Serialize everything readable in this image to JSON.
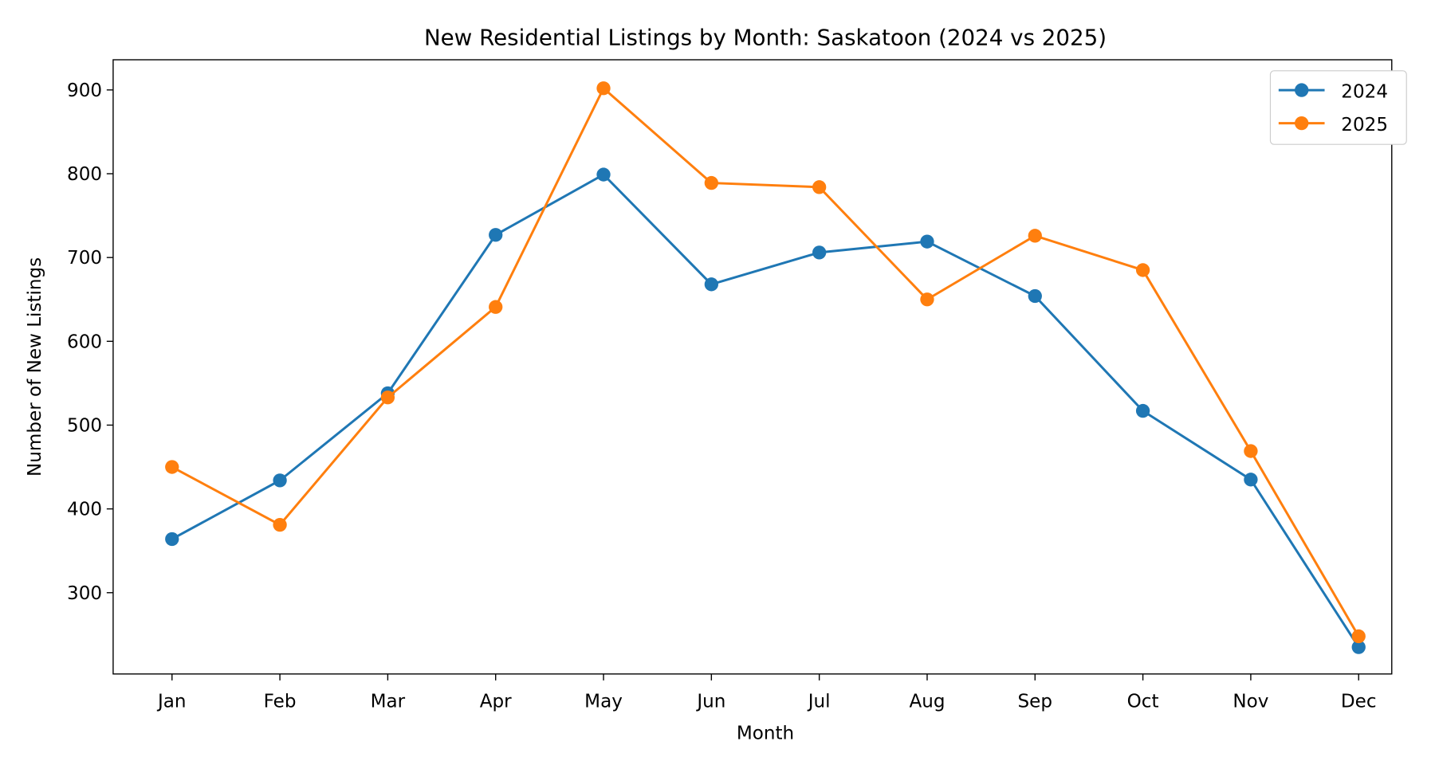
{
  "chart_data": {
    "type": "line",
    "title": "New Residential Listings by Month: Saskatoon (2024 vs 2025)",
    "xlabel": "Month",
    "ylabel": "Number of New Listings",
    "categories": [
      "Jan",
      "Feb",
      "Mar",
      "Apr",
      "May",
      "Jun",
      "Jul",
      "Aug",
      "Sep",
      "Oct",
      "Nov",
      "Dec"
    ],
    "ylim": [
      203,
      936
    ],
    "yticks": [
      300,
      400,
      500,
      600,
      700,
      800,
      900
    ],
    "grid": false,
    "legend_position": "top-right",
    "series": [
      {
        "name": "2024",
        "color": "#1f77b4",
        "values": [
          364,
          434,
          538,
          727,
          799,
          668,
          706,
          719,
          654,
          517,
          435,
          235
        ]
      },
      {
        "name": "2025",
        "color": "#ff7f0e",
        "values": [
          450,
          381,
          533,
          641,
          902,
          789,
          784,
          650,
          726,
          685,
          469,
          248
        ]
      }
    ]
  }
}
